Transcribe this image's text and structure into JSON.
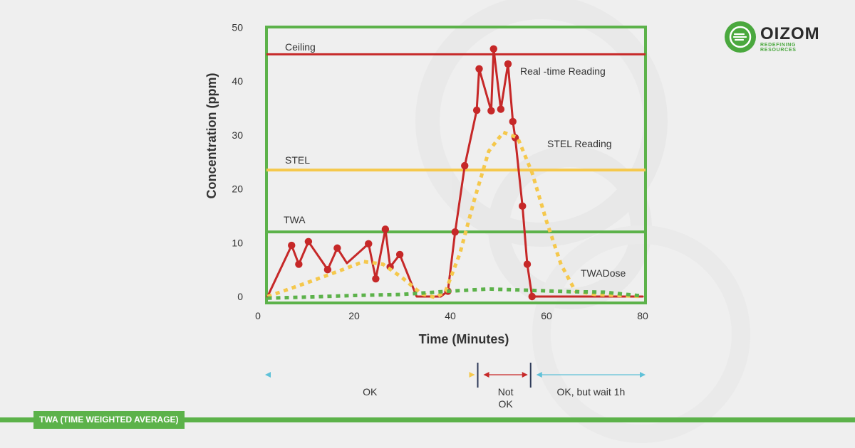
{
  "chart_data": {
    "type": "line",
    "xlabel": "Time (Minutes)",
    "ylabel": "Concentration (ppm)",
    "xlim": [
      0,
      80
    ],
    "ylim": [
      0,
      50
    ],
    "x_ticks": [
      0,
      20,
      40,
      60,
      80
    ],
    "y_ticks": [
      0,
      10,
      20,
      30,
      40,
      50
    ],
    "thresholds": [
      {
        "name": "Ceiling",
        "value": 45,
        "color": "#c62828"
      },
      {
        "name": "STEL",
        "value": 23.5,
        "color": "#f5c84c"
      },
      {
        "name": "TWA",
        "value": 12,
        "color": "#5cb24a"
      }
    ],
    "series": [
      {
        "name": "Real -time Reading",
        "style": "solid-markers",
        "color": "#c62828",
        "points": [
          [
            2,
            0
          ],
          [
            7,
            9.5
          ],
          [
            8.5,
            6
          ],
          [
            10.5,
            10.2
          ],
          [
            14.5,
            5
          ],
          [
            16.5,
            9
          ],
          [
            18.5,
            6.2
          ],
          [
            23,
            9.8
          ],
          [
            24.5,
            3.3
          ],
          [
            26.5,
            12.5
          ],
          [
            27.5,
            5.5
          ],
          [
            29.5,
            7.8
          ],
          [
            33,
            0
          ],
          [
            38,
            0
          ],
          [
            39.5,
            1
          ],
          [
            41,
            12
          ],
          [
            43,
            24.3
          ],
          [
            45.5,
            34.6
          ],
          [
            46,
            42.3
          ],
          [
            48.5,
            34.5
          ],
          [
            49,
            46
          ],
          [
            50.5,
            34.8
          ],
          [
            52,
            43.2
          ],
          [
            53,
            32.5
          ],
          [
            53.5,
            29.5
          ],
          [
            55,
            16.8
          ],
          [
            56,
            6
          ],
          [
            57,
            0
          ],
          [
            80,
            0
          ]
        ],
        "markers": [
          [
            7,
            9.5
          ],
          [
            8.5,
            6
          ],
          [
            10.5,
            10.2
          ],
          [
            14.5,
            5
          ],
          [
            16.5,
            9
          ],
          [
            23,
            9.8
          ],
          [
            24.5,
            3.3
          ],
          [
            26.5,
            12.5
          ],
          [
            27.5,
            5.5
          ],
          [
            29.5,
            7.8
          ],
          [
            39.5,
            1
          ],
          [
            41,
            12
          ],
          [
            43,
            24.3
          ],
          [
            45.5,
            34.6
          ],
          [
            46,
            42.3
          ],
          [
            48.5,
            34.5
          ],
          [
            49,
            46
          ],
          [
            50.5,
            34.8
          ],
          [
            52,
            43.2
          ],
          [
            53,
            32.5
          ],
          [
            53.5,
            29.5
          ],
          [
            55,
            16.8
          ],
          [
            56,
            6
          ],
          [
            57,
            0
          ]
        ]
      },
      {
        "name": "STEL Reading",
        "style": "dotted",
        "color": "#f5c84c",
        "points": [
          [
            2,
            0
          ],
          [
            10,
            2.5
          ],
          [
            17,
            4.8
          ],
          [
            22,
            6.5
          ],
          [
            26,
            6
          ],
          [
            30,
            3.5
          ],
          [
            34,
            0.5
          ],
          [
            37,
            -0.2
          ],
          [
            39,
            1
          ],
          [
            42,
            8
          ],
          [
            45,
            18
          ],
          [
            48,
            27
          ],
          [
            51,
            30.5
          ],
          [
            54,
            29.5
          ],
          [
            57,
            23
          ],
          [
            60,
            14
          ],
          [
            63,
            6
          ],
          [
            66,
            1
          ],
          [
            70,
            0.4
          ],
          [
            80,
            0
          ]
        ]
      },
      {
        "name": "TWADose",
        "style": "dotted",
        "color": "#5cb24a",
        "points": [
          [
            2,
            -0.3
          ],
          [
            10,
            -0.1
          ],
          [
            20,
            0.2
          ],
          [
            30,
            0.4
          ],
          [
            40,
            1
          ],
          [
            48,
            1.4
          ],
          [
            55,
            1.2
          ],
          [
            65,
            0.9
          ],
          [
            72,
            0.8
          ],
          [
            80,
            0.1
          ]
        ]
      }
    ],
    "annotations": [
      {
        "text": "Ceiling",
        "series": "Ceiling"
      },
      {
        "text": "STEL",
        "series": "STEL"
      },
      {
        "text": "TWA",
        "series": "TWA"
      },
      {
        "text": "Real -time Reading",
        "series": "Real -time Reading"
      },
      {
        "text": "STEL Reading",
        "series": "STEL Reading"
      },
      {
        "text": "TWADose",
        "series": "TWADose"
      }
    ],
    "zones": [
      {
        "label": "OK",
        "from": 0,
        "to": 46,
        "color": "#5fc1d8",
        "color_end": "#f5c84c"
      },
      {
        "label": "Not\nOK",
        "from": 46,
        "to": 57,
        "color": "#c62828"
      },
      {
        "label": "OK, but wait 1h",
        "from": 57,
        "to": 80,
        "color": "#5fc1d8"
      }
    ]
  },
  "logo": {
    "brand": "OIZOM",
    "tagline": "REDEFINING RESOURCES"
  },
  "footer": {
    "label": "TWA (TIME WEIGHTED AVERAGE)"
  }
}
